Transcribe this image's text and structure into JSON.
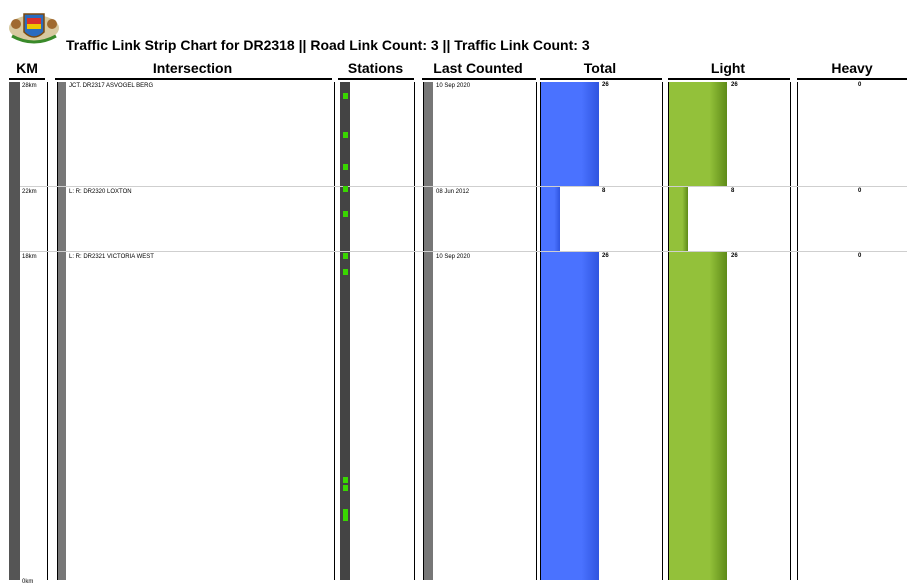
{
  "title": "Traffic Link Strip Chart for DR2318 || Road Link Count: 3 || Traffic Link Count: 3",
  "logo": "coat-of-arms-icon",
  "columns": {
    "km": "KM",
    "intersection": "Intersection",
    "stations": "Stations",
    "last_counted": "Last Counted",
    "total": "Total",
    "light": "Light",
    "heavy": "Heavy"
  },
  "colors": {
    "total": "#4a72ff",
    "light": "#93c13a",
    "station": "#39d700"
  },
  "chart_data": {
    "type": "bar",
    "title": "Traffic Link Strip Chart for DR2318 || Road Link Count: 3 || Traffic Link Count: 3",
    "road": "DR2318",
    "km_range": [
      0,
      28
    ],
    "bottom_km_label": "0km",
    "max_value": 26,
    "rows": [
      {
        "km": 28,
        "km_label": "28km",
        "intersection": "JCT. DR2317 ASVOGEL BERG",
        "last_counted": "10 Sep 2020",
        "total": 26,
        "light": 26,
        "heavy": 0,
        "total_label": "26",
        "light_label": "26",
        "heavy_label": "0"
      },
      {
        "km": 22,
        "km_label": "22km",
        "intersection": "L: R: DR2320 LOXTON",
        "last_counted": "08 Jun 2012",
        "total": 8,
        "light": 8,
        "heavy": 0,
        "total_label": "8",
        "light_label": "8",
        "heavy_label": "0"
      },
      {
        "km": 18,
        "km_label": "18km",
        "intersection": "L: R: DR2321 VICTORIA WEST",
        "last_counted": "10 Sep 2020",
        "total": 26,
        "light": 26,
        "heavy": 0,
        "total_label": "26",
        "light_label": "26",
        "heavy_label": "0"
      }
    ],
    "stations_km": [
      27.2,
      25.0,
      23.2,
      22.0,
      20.6,
      18.2,
      17.3,
      5.6,
      5.2,
      3.8,
      3.5
    ]
  }
}
